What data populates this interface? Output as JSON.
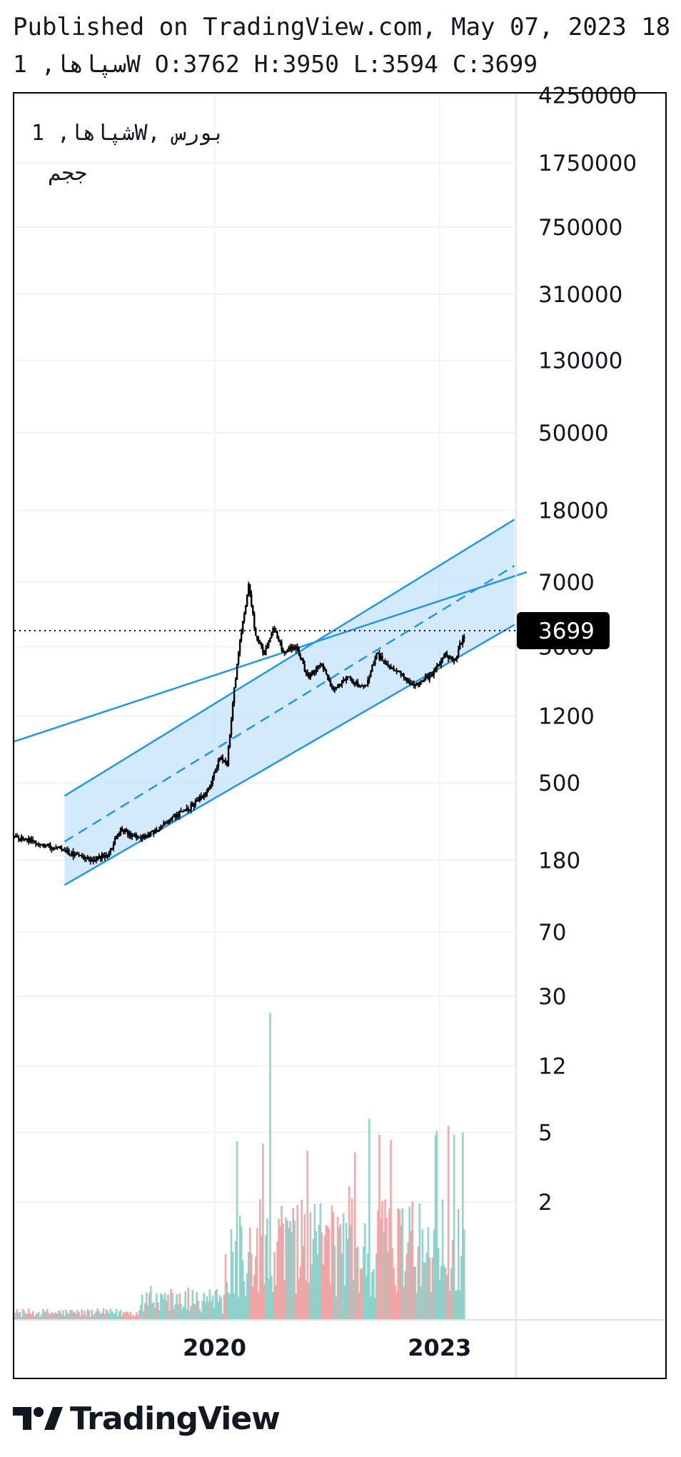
{
  "header": {
    "published_line": "Published on TradingView.com, May 07, 2023 18",
    "ohlc_line": "سپاها, 1W O:3762 H:3950 L:3594 C:3699"
  },
  "legend": {
    "line1": "شپاها, 1W, بورس",
    "line2": "ججم"
  },
  "brand": {
    "name": "TradingView"
  },
  "colors": {
    "candles": "#000000",
    "channel_line": "#2196f3",
    "channel_fill": "#bbdefb",
    "volume_up": "#80cbc4",
    "volume_down": "#ef9a9a",
    "grid": "#f0f3fa",
    "price_label_bg": "#000000"
  },
  "chart_data": {
    "type": "candlestick",
    "symbol": "سپاها",
    "interval": "1W",
    "y_scale": "log",
    "price_axis_ticks": [
      4250000,
      1750000,
      750000,
      310000,
      130000,
      50000,
      18000,
      7000,
      3000,
      1200,
      500,
      180,
      70,
      30,
      12,
      5,
      2
    ],
    "time_axis_labels": [
      {
        "label": "2020",
        "date": "2020-01-01"
      },
      {
        "label": "2023",
        "date": "2023-01-01"
      }
    ],
    "last_price": {
      "value": 3699,
      "label": "3699"
    },
    "ohlc_last": {
      "open": 3762,
      "high": 3950,
      "low": 3594,
      "close": 3699
    },
    "x_range": [
      "2017-05-01",
      "2024-03-01"
    ],
    "price_series_approx": [
      {
        "date": "2017-05-01",
        "close": 245
      },
      {
        "date": "2017-09-01",
        "close": 225
      },
      {
        "date": "2018-01-01",
        "close": 205
      },
      {
        "date": "2018-05-01",
        "close": 180
      },
      {
        "date": "2018-08-01",
        "close": 195
      },
      {
        "date": "2018-10-01",
        "close": 270
      },
      {
        "date": "2019-01-01",
        "close": 240
      },
      {
        "date": "2019-03-01",
        "close": 255
      },
      {
        "date": "2019-06-01",
        "close": 310
      },
      {
        "date": "2019-09-01",
        "close": 360
      },
      {
        "date": "2019-12-01",
        "close": 450
      },
      {
        "date": "2020-02-01",
        "close": 720
      },
      {
        "date": "2020-03-01",
        "close": 630
      },
      {
        "date": "2020-04-01",
        "close": 1500
      },
      {
        "date": "2020-05-01",
        "close": 3000
      },
      {
        "date": "2020-06-15",
        "close": 6600
      },
      {
        "date": "2020-07-20",
        "close": 3500
      },
      {
        "date": "2020-09-01",
        "close": 2700
      },
      {
        "date": "2020-10-15",
        "close": 3900
      },
      {
        "date": "2020-12-01",
        "close": 2800
      },
      {
        "date": "2021-02-01",
        "close": 3000
      },
      {
        "date": "2021-04-01",
        "close": 2000
      },
      {
        "date": "2021-06-01",
        "close": 2400
      },
      {
        "date": "2021-08-01",
        "close": 1700
      },
      {
        "date": "2021-10-01",
        "close": 2000
      },
      {
        "date": "2022-01-01",
        "close": 1750
      },
      {
        "date": "2022-03-01",
        "close": 2700
      },
      {
        "date": "2022-06-01",
        "close": 2200
      },
      {
        "date": "2022-09-01",
        "close": 1800
      },
      {
        "date": "2022-12-01",
        "close": 2100
      },
      {
        "date": "2023-02-01",
        "close": 2700
      },
      {
        "date": "2023-03-15",
        "close": 2500
      },
      {
        "date": "2023-05-07",
        "close": 3699
      }
    ],
    "drawings": {
      "parallel_channel": {
        "start_date": "2018-01-01",
        "end_date": "2024-01-01",
        "upper": [
          420,
          16000
        ],
        "middle": [
          230,
          8700
        ],
        "lower": [
          130,
          4000
        ]
      },
      "trend_line": {
        "start_date": "2017-05-01",
        "end_date": "2024-03-01",
        "values": [
          860,
          8000
        ]
      }
    },
    "volume": {
      "spike_date": "2020-10-01",
      "relative_max": 1.0
    }
  }
}
